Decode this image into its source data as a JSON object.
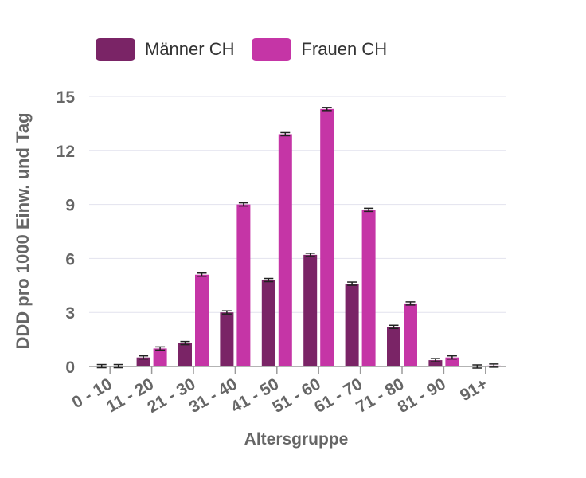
{
  "chart_data": {
    "type": "bar",
    "xlabel": "Altersgruppe",
    "ylabel": "DDD pro 1000 Einw. und Tag",
    "ylim": [
      0,
      15
    ],
    "yticks": [
      0,
      3,
      6,
      9,
      12,
      15
    ],
    "categories": [
      "0 - 10",
      "11 - 20",
      "21 - 30",
      "31 - 40",
      "41 - 50",
      "51 - 60",
      "61 - 70",
      "71 - 80",
      "81 - 90",
      "91+"
    ],
    "series": [
      {
        "name": "Männer CH",
        "color": "#7a2466",
        "values": [
          0.02,
          0.5,
          1.3,
          3.0,
          4.8,
          6.2,
          4.6,
          2.2,
          0.35,
          0.0
        ]
      },
      {
        "name": "Frauen CH",
        "color": "#c535a6",
        "values": [
          0.02,
          1.0,
          5.1,
          9.0,
          12.9,
          14.3,
          8.7,
          3.5,
          0.5,
          0.05
        ]
      }
    ],
    "error_bars": true,
    "grid": true,
    "legend": "top-left"
  }
}
